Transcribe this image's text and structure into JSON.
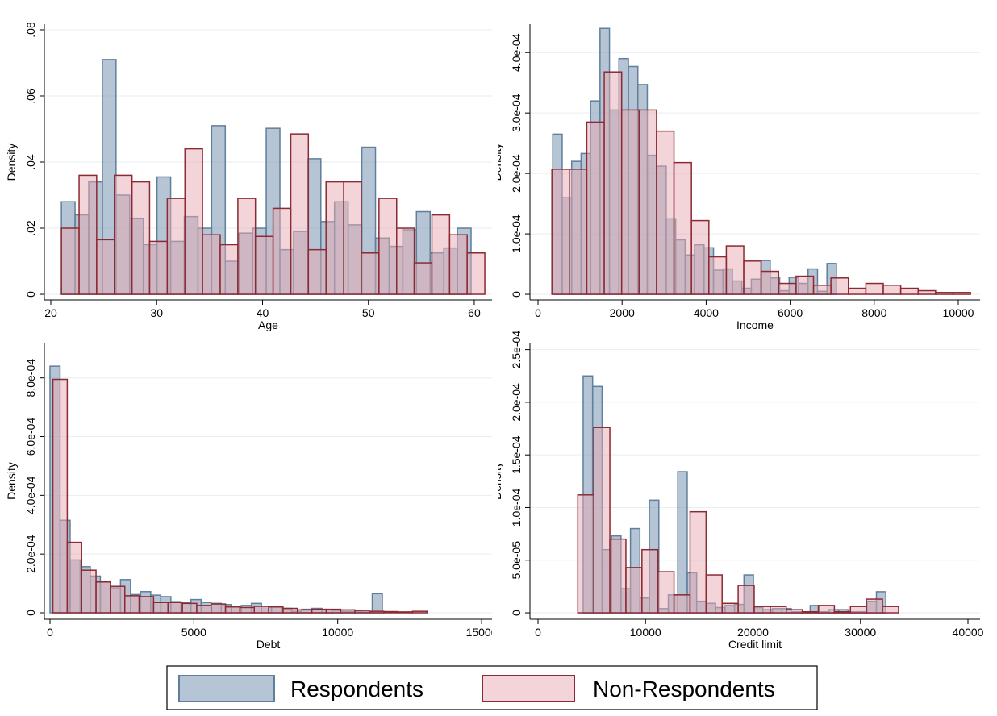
{
  "chart_data": [
    {
      "type": "histogram",
      "xlabel": "Age",
      "ylabel": "Density",
      "xlim": [
        19.39,
        61.68
      ],
      "ylim": [
        -0.0017,
        0.0817
      ],
      "xticks": [
        20,
        30,
        40,
        50,
        60
      ],
      "yticks": [
        0,
        {
          "value": 0.02,
          "label": ".02"
        },
        {
          "value": 0.04,
          "label": ".04"
        },
        {
          "value": 0.06,
          "label": ".06"
        },
        {
          "value": 0.08,
          "label": ".08"
        }
      ],
      "grid": true,
      "series": [
        {
          "name": "Respondents",
          "color": "#5f7f9a",
          "bins": [
            21,
            22.29,
            23.58,
            24.87,
            26.16,
            27.45,
            28.74,
            30.03,
            31.32,
            32.61,
            33.9,
            35.19,
            36.48,
            37.77,
            39.06,
            40.35,
            41.64,
            42.93,
            44.22,
            45.51,
            46.8,
            48.09,
            49.38,
            50.67,
            51.96,
            53.25,
            54.54,
            55.83,
            57.12,
            58.41,
            59.7
          ],
          "values": [
            0.028,
            0.024,
            0.034,
            0.071,
            0.03,
            0.023,
            0.015,
            0.0355,
            0.016,
            0.0235,
            0.02,
            0.051,
            0.01,
            0.0185,
            0.02,
            0.0502,
            0.0135,
            0.019,
            0.041,
            0.022,
            0.028,
            0.021,
            0.0445,
            0.017,
            0.0145,
            0.0195,
            0.025,
            0.0125,
            0.014,
            0.02
          ]
        },
        {
          "name": "Non-Respondents",
          "color": "#8b2a33",
          "bins": [
            21,
            22.67,
            24.33,
            26,
            27.67,
            29.33,
            31,
            32.67,
            34.33,
            36,
            37.67,
            39.33,
            41,
            42.67,
            44.33,
            46,
            47.67,
            49.33,
            51,
            52.67,
            54.33,
            56,
            57.67,
            59.33,
            61
          ],
          "values": [
            0.02,
            0.036,
            0.0165,
            0.036,
            0.034,
            0.016,
            0.029,
            0.044,
            0.018,
            0.015,
            0.029,
            0.0175,
            0.026,
            0.0485,
            0.0135,
            0.034,
            0.034,
            0.0125,
            0.029,
            0.02,
            0.0095,
            0.024,
            0.018,
            0.0125
          ]
        }
      ]
    },
    {
      "type": "histogram",
      "xlabel": "Income",
      "ylabel": "Density",
      "xlim": [
        -192,
        10518
      ],
      "ylim": [
        -9.3e-06,
        0.000447
      ],
      "xticks": [
        0,
        2000,
        4000,
        6000,
        8000,
        10000
      ],
      "yticks": [
        0,
        {
          "value": 0.0001,
          "label": "1.0e-04"
        },
        {
          "value": 0.0002,
          "label": "2.0e-04"
        },
        {
          "value": 0.0003,
          "label": "3.0e-04"
        },
        {
          "value": 0.0004,
          "label": "4.0e-04"
        }
      ],
      "grid": true,
      "series": [
        {
          "name": "Respondents",
          "color": "#5f7f9a",
          "bins": [
            350,
            575,
            800,
            1025,
            1250,
            1475,
            1700,
            1925,
            2150,
            2375,
            2600,
            2825,
            3050,
            3275,
            3500,
            3725,
            3950,
            4175,
            4400,
            4625,
            4850,
            5075,
            5300,
            5525,
            5750,
            5975,
            6200,
            6425,
            6650,
            6875,
            7100
          ],
          "values": [
            0.000265,
            0.00016,
            0.00022,
            0.000233,
            0.00032,
            0.00044,
            0.000305,
            0.00039,
            0.000377,
            0.000347,
            0.00023,
            0.000212,
            0.000125,
            9e-05,
            6.5e-05,
            8.2e-05,
            7.7e-05,
            4e-05,
            4.2e-05,
            2.2e-05,
            1e-05,
            2.5e-05,
            5.6e-05,
            2.7e-05,
            6e-06,
            2.8e-05,
            1.8e-05,
            4.2e-05,
            5e-06,
            5.1e-05
          ]
        },
        {
          "name": "Non-Respondents",
          "color": "#8b2a33",
          "bins": [
            330,
            745,
            1160,
            1575,
            1990,
            2405,
            2820,
            3235,
            3650,
            4065,
            4480,
            4895,
            5310,
            5725,
            6140,
            6555,
            6970,
            7385,
            7800,
            8215,
            8630,
            9045,
            9460,
            9875,
            10290
          ],
          "values": [
            0.000207,
            0.000207,
            0.000285,
            0.000368,
            0.000305,
            0.000305,
            0.00027,
            0.000218,
            0.000122,
            6.2e-05,
            8e-05,
            5.5e-05,
            3.8e-05,
            1.8e-05,
            3e-05,
            1.5e-05,
            2.7e-05,
            1e-05,
            1.8e-05,
            1.5e-05,
            1e-05,
            6e-06,
            3e-06,
            3e-06
          ]
        }
      ]
    },
    {
      "type": "histogram",
      "xlabel": "Debt",
      "ylabel": "Density",
      "xlim": [
        -196,
        15363
      ],
      "ylim": [
        -2.2e-05,
        0.00092
      ],
      "xticks": [
        0,
        5000,
        10000,
        15000
      ],
      "yticks": [
        0,
        {
          "value": 0.0002,
          "label": "2.0e-04"
        },
        {
          "value": 0.0004,
          "label": "4.0e-04"
        },
        {
          "value": 0.0006,
          "label": "6.0e-04"
        },
        {
          "value": 0.0008,
          "label": "8.0e-04"
        }
      ],
      "grid": true,
      "series": [
        {
          "name": "Respondents",
          "color": "#5f7f9a",
          "bins": [
            0,
            350,
            700,
            1050,
            1400,
            1750,
            2100,
            2450,
            2800,
            3150,
            3500,
            3850,
            4200,
            4550,
            4900,
            5250,
            5600,
            5950,
            6300,
            6650,
            7000,
            7350,
            7700,
            8050,
            8400,
            8750,
            9100,
            9450,
            9800,
            10150,
            10500,
            10850,
            11200,
            11550
          ],
          "values": [
            0.00084,
            0.000315,
            0.00018,
            0.000157,
            0.000125,
            0.000105,
            8.5e-05,
            0.000113,
            6.2e-05,
            7.2e-05,
            6e-05,
            5.5e-05,
            3.8e-05,
            3.5e-05,
            4.5e-05,
            3.5e-05,
            3.2e-05,
            2.8e-05,
            2.2e-05,
            2.5e-05,
            3.2e-05,
            2.2e-05,
            2e-05,
            1.5e-05,
            5e-06,
            1.2e-05,
            1.5e-05,
            1e-05,
            8e-06,
            5e-06,
            5e-06,
            3e-06,
            6.5e-05
          ]
        },
        {
          "name": "Non-Respondents",
          "color": "#8b2a33",
          "bins": [
            100,
            600,
            1100,
            1600,
            2100,
            2600,
            3100,
            3600,
            4100,
            4600,
            5100,
            5600,
            6100,
            6600,
            7100,
            7600,
            8100,
            8600,
            9100,
            9600,
            10100,
            10600,
            11100,
            11600,
            12100,
            12600,
            13100
          ],
          "values": [
            0.000795,
            0.00024,
            0.000145,
            0.000105,
            9e-05,
            5.8e-05,
            5.5e-05,
            3.5e-05,
            3.5e-05,
            3.2e-05,
            2.5e-05,
            3e-05,
            2e-05,
            1.8e-05,
            2.2e-05,
            2e-05,
            1.5e-05,
            1e-05,
            1.2e-05,
            1.2e-05,
            1e-05,
            8e-06,
            5e-06,
            4e-06,
            3e-06,
            5e-06
          ]
        }
      ]
    },
    {
      "type": "histogram",
      "xlabel": "Credit limit",
      "ylabel": "Density",
      "xlim": [
        -750,
        41125
      ],
      "ylim": [
        -6.1e-06,
        0.0002566
      ],
      "xticks": [
        0,
        10000,
        20000,
        30000,
        40000
      ],
      "yticks": [
        0,
        {
          "value": 5e-05,
          "label": "5.0e-05"
        },
        {
          "value": 0.0001,
          "label": "1.0e-04"
        },
        {
          "value": 0.00015,
          "label": "1.5e-04"
        },
        {
          "value": 0.0002,
          "label": "2.0e-04"
        },
        {
          "value": 0.00025,
          "label": "2.5e-04"
        }
      ],
      "grid": true,
      "series": [
        {
          "name": "Respondents",
          "color": "#5f7f9a",
          "bins": [
            4200,
            5080,
            5960,
            6840,
            7720,
            8600,
            9480,
            10360,
            11240,
            12120,
            13000,
            13880,
            14760,
            15640,
            16520,
            17400,
            18280,
            19160,
            20040,
            20920,
            21800,
            22680,
            23560,
            24440,
            25320,
            26200,
            27080,
            27960,
            28840,
            29720,
            30600,
            31480,
            32360
          ],
          "values": [
            0.000225,
            0.000215,
            6e-05,
            7.3e-05,
            2.3e-05,
            8e-05,
            1.4e-05,
            0.000107,
            4e-06,
            1.7e-05,
            0.000134,
            3.8e-05,
            1.1e-05,
            9e-06,
            5e-06,
            7e-06,
            8e-06,
            3.6e-05,
            5e-06,
            3e-06,
            4e-06,
            4e-06,
            1e-06,
            1e-06,
            7e-06,
            1e-06,
            3e-06,
            3e-06,
            1e-06,
            1e-06,
            1.1e-05,
            2e-05
          ]
        },
        {
          "name": "Non-Respondents",
          "color": "#8b2a33",
          "bins": [
            3700,
            5192,
            6684,
            8176,
            9668,
            11160,
            12652,
            14144,
            15636,
            17128,
            18620,
            20112,
            21604,
            23096,
            24588,
            26080,
            27572,
            29064,
            30556,
            32048,
            33540
          ],
          "values": [
            0.000112,
            0.000176,
            7e-05,
            4.3e-05,
            6e-05,
            3.9e-05,
            1.7e-05,
            9.6e-05,
            3.6e-05,
            9e-06,
            2.6e-05,
            6e-06,
            6e-06,
            3e-06,
            1e-06,
            7e-06,
            1e-06,
            6e-06,
            1.3e-05,
            6e-06
          ]
        }
      ]
    }
  ]
}
